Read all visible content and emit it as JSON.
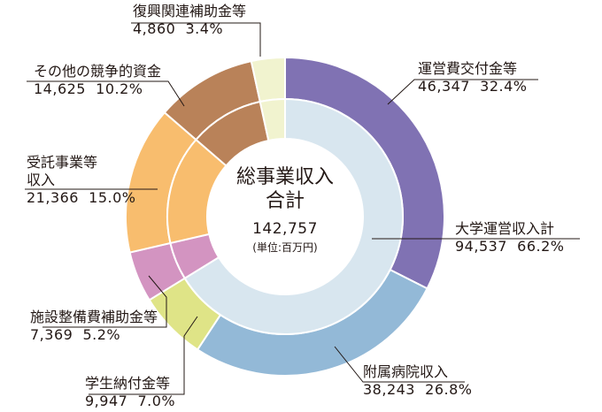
{
  "chart_data": {
    "type": "pie",
    "style": "nested-donut",
    "center": {
      "title_line1": "総事業収入",
      "title_line2": "合計",
      "total": "142,757",
      "unit": "(単位:百万円)"
    },
    "outer_ring": [
      {
        "name": "運営費交付金等",
        "value": 46347,
        "value_label": "46,347",
        "percent": "32.4%",
        "color": "#8072b3"
      },
      {
        "name": "附属病院収入",
        "value": 38243,
        "value_label": "38,243",
        "percent": "26.8%",
        "color": "#93b9d7"
      },
      {
        "name": "学生納付金等",
        "value": 9947,
        "value_label": "9,947",
        "percent": "7.0%",
        "color": "#dfe487"
      },
      {
        "name": "施設整備費補助金等",
        "value": 7369,
        "value_label": "7,369",
        "percent": "5.2%",
        "color": "#d394c1"
      },
      {
        "name": "受託事業等収入",
        "value": 21366,
        "value_label": "21,366",
        "percent": "15.0%",
        "color": "#f8bd6e"
      },
      {
        "name": "その他の競争的資金",
        "value": 14625,
        "value_label": "14,625",
        "percent": "10.2%",
        "color": "#b98259"
      },
      {
        "name": "復興関連補助金等",
        "value": 4860,
        "value_label": "4,860",
        "percent": "3.4%",
        "color": "#f1f3cf"
      }
    ],
    "inner_ring": [
      {
        "name": "大学運営収入計",
        "value": 94537,
        "value_label": "94,537",
        "percent": "66.2%",
        "color": "#d8e6ef"
      },
      {
        "name": "施設整備費補助金等",
        "value": 7369,
        "color": "#d394c1"
      },
      {
        "name": "受託事業等収入",
        "value": 21366,
        "color": "#f8bd6e"
      },
      {
        "name": "その他の競争的資金",
        "value": 14625,
        "color": "#b98259"
      },
      {
        "name": "復興関連補助金等",
        "value": 4860,
        "color": "#f1f3cf"
      }
    ]
  },
  "labels": {
    "unei": {
      "name": "運営費交付金等",
      "value": "46,347",
      "percent": "32.4%"
    },
    "daigaku": {
      "name": "大学運営収入計",
      "value": "94,537",
      "percent": "66.2%"
    },
    "byouin": {
      "name": "附属病院収入",
      "value": "38,243",
      "percent": "26.8%"
    },
    "gakusei": {
      "name": "学生納付金等",
      "value": "9,947",
      "percent": "7.0%"
    },
    "shisetsu": {
      "name": "施設整備費補助金等",
      "value": "7,369",
      "percent": "5.2%"
    },
    "jutaku": {
      "name_line1": "受託事業等",
      "name_line2": "収入",
      "value": "21,366",
      "percent": "15.0%"
    },
    "sonota": {
      "name": "その他の競争的資金",
      "value": "14,625",
      "percent": "10.2%"
    },
    "fukkou": {
      "name": "復興関連補助金等",
      "value": "4,860",
      "percent": "3.4%"
    }
  }
}
